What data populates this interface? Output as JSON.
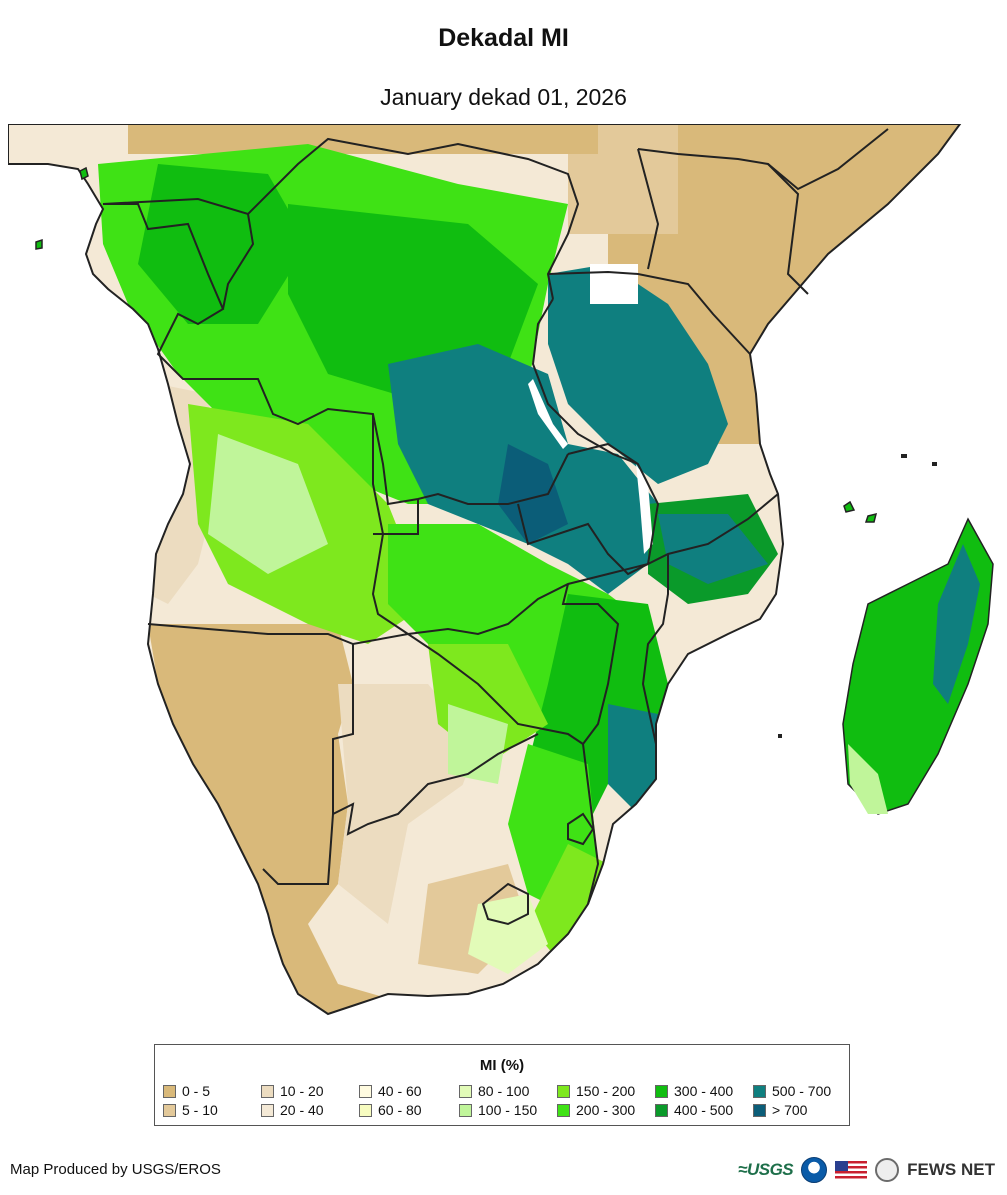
{
  "title": "Dekadal MI",
  "subtitle": "January dekad 01, 2026",
  "legend": {
    "title": "MI (%)",
    "items": [
      {
        "label": "0 - 5",
        "color": "#d9b97a"
      },
      {
        "label": "5 - 10",
        "color": "#e3c99a"
      },
      {
        "label": "10 - 20",
        "color": "#ecdcc0"
      },
      {
        "label": "20 - 40",
        "color": "#f4e9d6"
      },
      {
        "label": "40 - 60",
        "color": "#fffbe0"
      },
      {
        "label": "60 - 80",
        "color": "#f7fcc0"
      },
      {
        "label": "80 - 100",
        "color": "#e2fbb8"
      },
      {
        "label": "100 - 150",
        "color": "#c0f59a"
      },
      {
        "label": "150 - 200",
        "color": "#7ee81e"
      },
      {
        "label": "200 - 300",
        "color": "#3fe215"
      },
      {
        "label": "300 - 400",
        "color": "#10bd10"
      },
      {
        "label": "400 - 500",
        "color": "#0a9a2a"
      },
      {
        "label": "500 - 700",
        "color": "#0f7f7f"
      },
      {
        "label": "> 700",
        "color": "#0b5d78"
      }
    ]
  },
  "credit": "Map Produced by USGS/EROS",
  "logos": {
    "usgs": "≈USGS",
    "fews": "FEWS NET"
  }
}
